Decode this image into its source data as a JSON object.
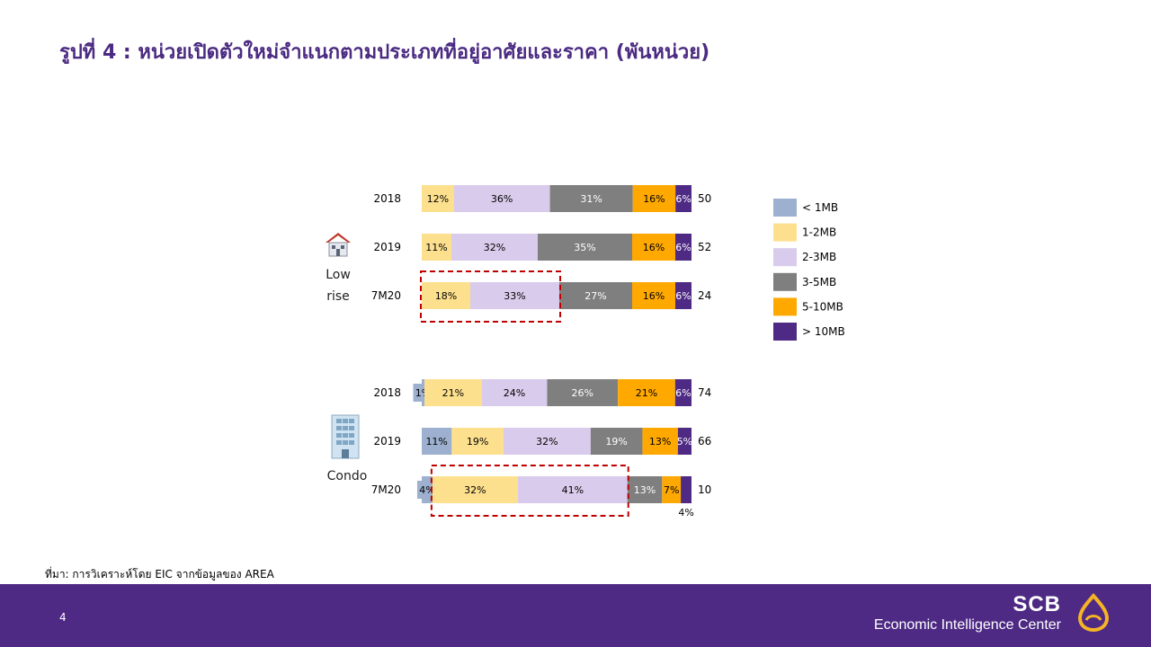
{
  "title": "รูปที่ 4 : หน่วยเปิดตัวใหม่จำแนกตามประเภทที่อยู่อาศัยและราคา (พันหน่วย)",
  "source": "ที่มา: การวิเคราะห์โดย EIC จากข้อมูลของ AREA",
  "page_number": "4",
  "brand": {
    "name": "SCB",
    "subtitle": "Economic Intelligence Center"
  },
  "groups": [
    {
      "label_line1": "Low",
      "label_line2": "rise",
      "icon": "house-icon"
    },
    {
      "label_line1": "Condo",
      "label_line2": "",
      "icon": "building-icon"
    }
  ],
  "colors": {
    "lt1": "#9DB0CF",
    "b1_2": "#FDE08E",
    "b2_3": "#D9CBEB",
    "b3_5": "#7F7F7F",
    "b5_10": "#FFA800",
    "gt10": "#4E2A84",
    "highlight": "#C00000",
    "title": "#4B2A82"
  },
  "chart_data": {
    "type": "bar",
    "orientation": "horizontal",
    "stacked": true,
    "percent_stacked": true,
    "legend": [
      "< 1MB",
      "1-2MB",
      "2-3MB",
      "3-5MB",
      "5-10MB",
      "> 10MB"
    ],
    "legend_position": "right",
    "rows": [
      {
        "group": "Low rise",
        "category": "2018",
        "values": [
          0,
          12,
          36,
          31,
          16,
          6
        ],
        "labels": [
          "",
          "12%",
          "36%",
          "31%",
          "16%",
          "6%"
        ],
        "total": "50"
      },
      {
        "group": "Low rise",
        "category": "2019",
        "values": [
          0,
          11,
          32,
          35,
          16,
          6
        ],
        "labels": [
          "",
          "11%",
          "32%",
          "35%",
          "16%",
          "6%"
        ],
        "total": "52"
      },
      {
        "group": "Low rise",
        "category": "7M20",
        "values": [
          0,
          18,
          33,
          27,
          16,
          6
        ],
        "labels": [
          "",
          "18%",
          "33%",
          "27%",
          "16%",
          "6%"
        ],
        "total": "24",
        "highlight": true
      },
      {
        "group": "Condo",
        "category": "2018",
        "values": [
          1,
          21,
          24,
          26,
          21,
          6
        ],
        "labels": [
          "1%",
          "21%",
          "24%",
          "26%",
          "21%",
          "6%"
        ],
        "total": "74"
      },
      {
        "group": "Condo",
        "category": "2019",
        "values": [
          11,
          19,
          32,
          19,
          13,
          5
        ],
        "labels": [
          "11%",
          "19%",
          "32%",
          "19%",
          "13%",
          "5%"
        ],
        "total": "66"
      },
      {
        "group": "Condo",
        "category": "7M20",
        "values": [
          4,
          32,
          41,
          13,
          7,
          4
        ],
        "labels": [
          "4%",
          "32%",
          "41%",
          "13%",
          "7%",
          "4%"
        ],
        "total": "10",
        "highlight": true
      }
    ]
  }
}
